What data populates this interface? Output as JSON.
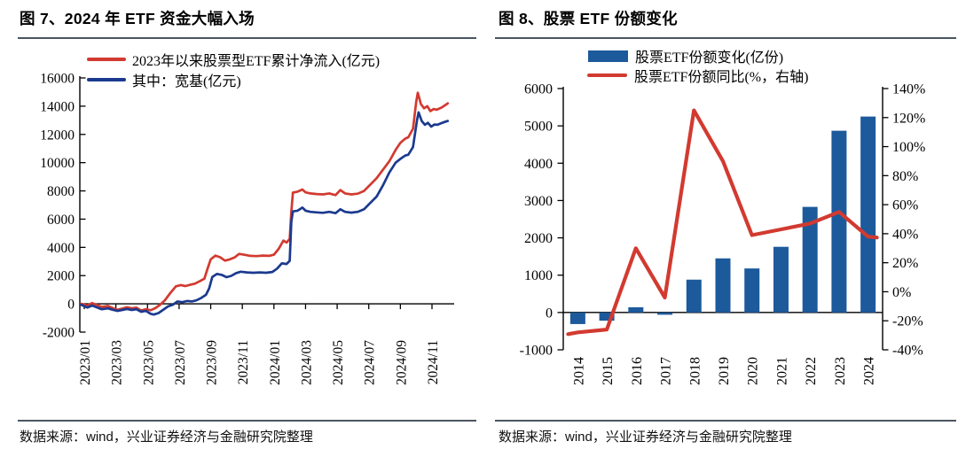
{
  "panels": [
    {
      "title": "图 7、2024 年 ETF 资金大幅入场",
      "source": "数据来源：wind，兴业证券经济与金融研究院整理",
      "legend": [
        {
          "label": "2023年以来股票型ETF累计净流入(亿元)"
        },
        {
          "label": "其中：宽基(亿元)"
        }
      ]
    },
    {
      "title": "图 8、股票 ETF 份额变化",
      "source": "数据来源：wind，兴业证券经济与金融研究院整理",
      "legend": [
        {
          "label": "股票ETF份额变化(亿份)"
        },
        {
          "label": "股票ETF份额同比(%，右轴)"
        }
      ]
    }
  ],
  "colors": {
    "red": "#D23A30",
    "navy": "#1B3A8F",
    "bar_blue": "#1C5A9C",
    "rule": "#4A5560",
    "axis": "#000000"
  },
  "chart_data": [
    {
      "type": "line",
      "title": "图 7、2024 年 ETF 资金大幅入场",
      "ylabel": "亿元",
      "ylim": [
        -2000,
        16000
      ],
      "y_ticks": [
        -2000,
        0,
        2000,
        4000,
        6000,
        8000,
        10000,
        12000,
        14000,
        16000
      ],
      "x_tick_labels": [
        "2023/01",
        "2023/03",
        "2023/05",
        "2023/07",
        "2023/09",
        "2023/11",
        "2024/01",
        "2024/03",
        "2024/05",
        "2024/07",
        "2024/09",
        "2024/11"
      ],
      "x_tick_months": [
        0,
        2,
        4,
        6,
        8,
        10,
        12,
        14,
        16,
        18,
        20,
        22
      ],
      "grid": false,
      "legend_position": "top-left",
      "series": [
        {
          "name": "2023年以来股票型ETF累计净流入(亿元)",
          "color": "#D23A30",
          "points": [
            [
              -0.2,
              0
            ],
            [
              0.2,
              -120
            ],
            [
              0.5,
              60
            ],
            [
              0.8,
              -80
            ],
            [
              1.1,
              -220
            ],
            [
              1.5,
              -150
            ],
            [
              1.8,
              -300
            ],
            [
              2.1,
              -420
            ],
            [
              2.4,
              -330
            ],
            [
              2.7,
              -240
            ],
            [
              3.0,
              -310
            ],
            [
              3.3,
              -270
            ],
            [
              3.6,
              -470
            ],
            [
              3.9,
              -380
            ],
            [
              4.2,
              -450
            ],
            [
              4.5,
              -300
            ],
            [
              4.8,
              -60
            ],
            [
              5.1,
              250
            ],
            [
              5.4,
              700
            ],
            [
              5.8,
              1240
            ],
            [
              6.1,
              1330
            ],
            [
              6.4,
              1260
            ],
            [
              6.7,
              1350
            ],
            [
              7.0,
              1430
            ],
            [
              7.3,
              1600
            ],
            [
              7.6,
              1780
            ],
            [
              7.8,
              2500
            ],
            [
              8.0,
              3150
            ],
            [
              8.3,
              3420
            ],
            [
              8.6,
              3300
            ],
            [
              8.9,
              3060
            ],
            [
              9.2,
              3150
            ],
            [
              9.5,
              3280
            ],
            [
              9.8,
              3540
            ],
            [
              10.1,
              3480
            ],
            [
              10.5,
              3400
            ],
            [
              10.9,
              3380
            ],
            [
              11.3,
              3420
            ],
            [
              11.7,
              3400
            ],
            [
              12.0,
              3480
            ],
            [
              12.3,
              3900
            ],
            [
              12.6,
              4480
            ],
            [
              12.8,
              4350
            ],
            [
              13.0,
              4600
            ],
            [
              13.1,
              6500
            ],
            [
              13.2,
              7880
            ],
            [
              13.5,
              7950
            ],
            [
              13.8,
              8100
            ],
            [
              14.0,
              7900
            ],
            [
              14.3,
              7820
            ],
            [
              14.7,
              7780
            ],
            [
              15.1,
              7750
            ],
            [
              15.5,
              7820
            ],
            [
              15.9,
              7700
            ],
            [
              16.2,
              8060
            ],
            [
              16.5,
              7820
            ],
            [
              16.9,
              7750
            ],
            [
              17.3,
              7800
            ],
            [
              17.7,
              8000
            ],
            [
              18.1,
              8450
            ],
            [
              18.5,
              8900
            ],
            [
              18.9,
              9500
            ],
            [
              19.3,
              10100
            ],
            [
              19.7,
              10900
            ],
            [
              20.0,
              11400
            ],
            [
              20.3,
              11700
            ],
            [
              20.5,
              11800
            ],
            [
              20.8,
              12400
            ],
            [
              21.0,
              14300
            ],
            [
              21.1,
              14950
            ],
            [
              21.3,
              14150
            ],
            [
              21.5,
              13850
            ],
            [
              21.7,
              14000
            ],
            [
              21.9,
              13650
            ],
            [
              22.1,
              13800
            ],
            [
              22.3,
              13750
            ],
            [
              22.6,
              13900
            ],
            [
              22.8,
              14050
            ],
            [
              23.0,
              14200
            ]
          ]
        },
        {
          "name": "其中：宽基(亿元)",
          "color": "#1B3A8F",
          "points": [
            [
              -0.2,
              -60
            ],
            [
              0.2,
              -260
            ],
            [
              0.5,
              -120
            ],
            [
              0.8,
              -250
            ],
            [
              1.1,
              -380
            ],
            [
              1.5,
              -320
            ],
            [
              1.8,
              -420
            ],
            [
              2.1,
              -500
            ],
            [
              2.4,
              -430
            ],
            [
              2.7,
              -360
            ],
            [
              3.0,
              -430
            ],
            [
              3.3,
              -380
            ],
            [
              3.6,
              -560
            ],
            [
              3.9,
              -500
            ],
            [
              4.2,
              -700
            ],
            [
              4.4,
              -760
            ],
            [
              4.7,
              -650
            ],
            [
              5.0,
              -420
            ],
            [
              5.3,
              -180
            ],
            [
              5.6,
              -60
            ],
            [
              5.9,
              170
            ],
            [
              6.2,
              120
            ],
            [
              6.5,
              200
            ],
            [
              6.8,
              170
            ],
            [
              7.1,
              250
            ],
            [
              7.4,
              420
            ],
            [
              7.7,
              640
            ],
            [
              7.9,
              1100
            ],
            [
              8.1,
              1900
            ],
            [
              8.4,
              2120
            ],
            [
              8.7,
              2050
            ],
            [
              9.0,
              1890
            ],
            [
              9.3,
              1980
            ],
            [
              9.6,
              2180
            ],
            [
              9.9,
              2280
            ],
            [
              10.3,
              2230
            ],
            [
              10.7,
              2200
            ],
            [
              11.1,
              2230
            ],
            [
              11.5,
              2200
            ],
            [
              11.9,
              2260
            ],
            [
              12.2,
              2500
            ],
            [
              12.5,
              2870
            ],
            [
              12.8,
              2820
            ],
            [
              13.0,
              3050
            ],
            [
              13.1,
              5800
            ],
            [
              13.2,
              6550
            ],
            [
              13.5,
              6600
            ],
            [
              13.8,
              6820
            ],
            [
              14.0,
              6600
            ],
            [
              14.3,
              6520
            ],
            [
              14.7,
              6480
            ],
            [
              15.1,
              6450
            ],
            [
              15.5,
              6520
            ],
            [
              15.9,
              6420
            ],
            [
              16.2,
              6700
            ],
            [
              16.5,
              6520
            ],
            [
              16.9,
              6460
            ],
            [
              17.3,
              6520
            ],
            [
              17.7,
              6700
            ],
            [
              18.1,
              7150
            ],
            [
              18.5,
              7600
            ],
            [
              18.9,
              8400
            ],
            [
              19.3,
              9300
            ],
            [
              19.7,
              10000
            ],
            [
              20.0,
              10270
            ],
            [
              20.3,
              10500
            ],
            [
              20.5,
              10560
            ],
            [
              20.8,
              11100
            ],
            [
              21.05,
              13000
            ],
            [
              21.15,
              13560
            ],
            [
              21.35,
              12950
            ],
            [
              21.55,
              12680
            ],
            [
              21.75,
              12820
            ],
            [
              21.95,
              12550
            ],
            [
              22.15,
              12700
            ],
            [
              22.35,
              12680
            ],
            [
              22.6,
              12800
            ],
            [
              22.8,
              12880
            ],
            [
              23.0,
              12950
            ]
          ]
        }
      ]
    },
    {
      "type": "bar",
      "title": "图 8、股票 ETF 份额变化",
      "categories": [
        "2014",
        "2015",
        "2016",
        "2017",
        "2018",
        "2019",
        "2020",
        "2021",
        "2022",
        "2023",
        "2024"
      ],
      "ylim_left": [
        -1000,
        6000
      ],
      "y_ticks_left": [
        -1000,
        0,
        1000,
        2000,
        3000,
        4000,
        5000,
        6000
      ],
      "ylim_right": [
        -40,
        140
      ],
      "y_ticks_right": [
        -40,
        -20,
        0,
        20,
        40,
        60,
        80,
        100,
        120,
        140
      ],
      "grid": false,
      "legend_position": "top-center",
      "series": [
        {
          "name": "股票ETF份额变化(亿份)",
          "type": "bar",
          "axis": "left",
          "color": "#1C5A9C",
          "values": [
            -310,
            -220,
            140,
            -60,
            880,
            1450,
            1180,
            1760,
            2830,
            4870,
            5250
          ]
        },
        {
          "name": "股票ETF份额同比(%，右轴)",
          "type": "line",
          "axis": "right",
          "color": "#D23A30",
          "values": [
            -28,
            -26,
            30,
            -4,
            125,
            90,
            39,
            43,
            47,
            55,
            38
          ]
        }
      ]
    }
  ]
}
